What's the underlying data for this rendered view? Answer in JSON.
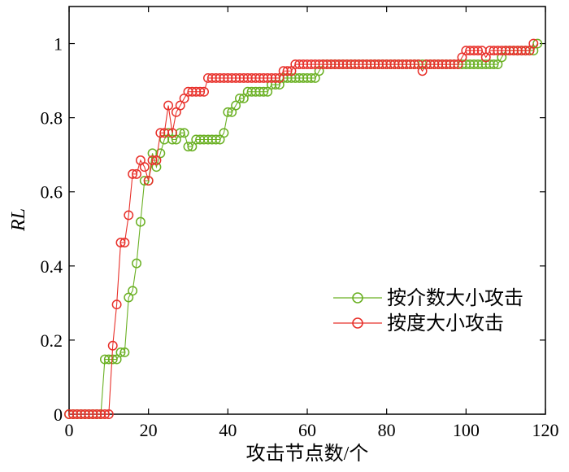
{
  "chart_data": {
    "type": "line",
    "xlabel": "攻击节点数/个",
    "ylabel": "RL",
    "xlim": [
      0,
      120
    ],
    "ylim": [
      0,
      1.1
    ],
    "x_ticks": [
      0,
      20,
      40,
      60,
      80,
      100,
      120
    ],
    "y_ticks": [
      0,
      0.2,
      0.4,
      0.6,
      0.8,
      1
    ],
    "x_tick_labels": [
      "0",
      "20",
      "40",
      "60",
      "80",
      "100",
      "120"
    ],
    "y_tick_labels": [
      "0",
      "0.2",
      "0.4",
      "0.6",
      "0.8",
      "1"
    ],
    "grid": false,
    "legend_position": "right",
    "series": [
      {
        "name": "按介数大小攻击",
        "color": "#6ab023",
        "marker": "circle-open",
        "points": [
          [
            0,
            0
          ],
          [
            1,
            0
          ],
          [
            2,
            0
          ],
          [
            3,
            0
          ],
          [
            4,
            0
          ],
          [
            5,
            0
          ],
          [
            6,
            0
          ],
          [
            7,
            0
          ],
          [
            8,
            0
          ],
          [
            9,
            0.148
          ],
          [
            10,
            0.148
          ],
          [
            11,
            0.148
          ],
          [
            12,
            0.148
          ],
          [
            13,
            0.167
          ],
          [
            14,
            0.167
          ],
          [
            15,
            0.315
          ],
          [
            16,
            0.333
          ],
          [
            17,
            0.407
          ],
          [
            18,
            0.519
          ],
          [
            19,
            0.63
          ],
          [
            20,
            0.63
          ],
          [
            21,
            0.704
          ],
          [
            22,
            0.667
          ],
          [
            23,
            0.704
          ],
          [
            24,
            0.741
          ],
          [
            25,
            0.759
          ],
          [
            26,
            0.741
          ],
          [
            27,
            0.741
          ],
          [
            28,
            0.759
          ],
          [
            29,
            0.759
          ],
          [
            30,
            0.722
          ],
          [
            31,
            0.722
          ],
          [
            32,
            0.741
          ],
          [
            33,
            0.741
          ],
          [
            34,
            0.741
          ],
          [
            35,
            0.741
          ],
          [
            36,
            0.741
          ],
          [
            37,
            0.741
          ],
          [
            38,
            0.741
          ],
          [
            39,
            0.759
          ],
          [
            40,
            0.815
          ],
          [
            41,
            0.815
          ],
          [
            42,
            0.833
          ],
          [
            43,
            0.852
          ],
          [
            44,
            0.852
          ],
          [
            45,
            0.87
          ],
          [
            46,
            0.87
          ],
          [
            47,
            0.87
          ],
          [
            48,
            0.87
          ],
          [
            49,
            0.87
          ],
          [
            50,
            0.87
          ],
          [
            51,
            0.889
          ],
          [
            52,
            0.889
          ],
          [
            53,
            0.889
          ],
          [
            54,
            0.907
          ],
          [
            55,
            0.907
          ],
          [
            56,
            0.907
          ],
          [
            57,
            0.907
          ],
          [
            58,
            0.907
          ],
          [
            59,
            0.907
          ],
          [
            60,
            0.907
          ],
          [
            61,
            0.907
          ],
          [
            62,
            0.907
          ],
          [
            63,
            0.926
          ],
          [
            64,
            0.944
          ],
          [
            65,
            0.944
          ],
          [
            66,
            0.944
          ],
          [
            67,
            0.944
          ],
          [
            68,
            0.944
          ],
          [
            69,
            0.944
          ],
          [
            70,
            0.944
          ],
          [
            71,
            0.944
          ],
          [
            72,
            0.944
          ],
          [
            73,
            0.944
          ],
          [
            74,
            0.944
          ],
          [
            75,
            0.944
          ],
          [
            76,
            0.944
          ],
          [
            77,
            0.944
          ],
          [
            78,
            0.944
          ],
          [
            79,
            0.944
          ],
          [
            80,
            0.944
          ],
          [
            81,
            0.944
          ],
          [
            82,
            0.944
          ],
          [
            83,
            0.944
          ],
          [
            84,
            0.944
          ],
          [
            85,
            0.944
          ],
          [
            86,
            0.944
          ],
          [
            87,
            0.944
          ],
          [
            88,
            0.944
          ],
          [
            89,
            0.944
          ],
          [
            90,
            0.944
          ],
          [
            91,
            0.944
          ],
          [
            92,
            0.944
          ],
          [
            93,
            0.944
          ],
          [
            94,
            0.944
          ],
          [
            95,
            0.944
          ],
          [
            96,
            0.944
          ],
          [
            97,
            0.944
          ],
          [
            98,
            0.944
          ],
          [
            99,
            0.944
          ],
          [
            100,
            0.944
          ],
          [
            101,
            0.944
          ],
          [
            102,
            0.944
          ],
          [
            103,
            0.944
          ],
          [
            104,
            0.944
          ],
          [
            105,
            0.944
          ],
          [
            106,
            0.944
          ],
          [
            107,
            0.944
          ],
          [
            108,
            0.944
          ],
          [
            109,
            0.963
          ],
          [
            110,
            0.981
          ],
          [
            111,
            0.981
          ],
          [
            112,
            0.981
          ],
          [
            113,
            0.981
          ],
          [
            114,
            0.981
          ],
          [
            115,
            0.981
          ],
          [
            116,
            0.981
          ],
          [
            117,
            0.981
          ],
          [
            118,
            1.0
          ]
        ]
      },
      {
        "name": "按度大小攻击",
        "color": "#e8302a",
        "marker": "circle-open",
        "points": [
          [
            0,
            0
          ],
          [
            1,
            0
          ],
          [
            2,
            0
          ],
          [
            3,
            0
          ],
          [
            4,
            0
          ],
          [
            5,
            0
          ],
          [
            6,
            0
          ],
          [
            7,
            0
          ],
          [
            8,
            0
          ],
          [
            9,
            0
          ],
          [
            10,
            0
          ],
          [
            11,
            0.185
          ],
          [
            12,
            0.296
          ],
          [
            13,
            0.463
          ],
          [
            14,
            0.463
          ],
          [
            15,
            0.537
          ],
          [
            16,
            0.648
          ],
          [
            17,
            0.648
          ],
          [
            18,
            0.685
          ],
          [
            19,
            0.667
          ],
          [
            20,
            0.63
          ],
          [
            21,
            0.685
          ],
          [
            22,
            0.685
          ],
          [
            23,
            0.759
          ],
          [
            24,
            0.759
          ],
          [
            25,
            0.833
          ],
          [
            26,
            0.759
          ],
          [
            27,
            0.815
          ],
          [
            28,
            0.833
          ],
          [
            29,
            0.852
          ],
          [
            30,
            0.87
          ],
          [
            31,
            0.87
          ],
          [
            32,
            0.87
          ],
          [
            33,
            0.87
          ],
          [
            34,
            0.87
          ],
          [
            35,
            0.907
          ],
          [
            36,
            0.907
          ],
          [
            37,
            0.907
          ],
          [
            38,
            0.907
          ],
          [
            39,
            0.907
          ],
          [
            40,
            0.907
          ],
          [
            41,
            0.907
          ],
          [
            42,
            0.907
          ],
          [
            43,
            0.907
          ],
          [
            44,
            0.907
          ],
          [
            45,
            0.907
          ],
          [
            46,
            0.907
          ],
          [
            47,
            0.907
          ],
          [
            48,
            0.907
          ],
          [
            49,
            0.907
          ],
          [
            50,
            0.907
          ],
          [
            51,
            0.907
          ],
          [
            52,
            0.907
          ],
          [
            53,
            0.907
          ],
          [
            54,
            0.926
          ],
          [
            55,
            0.926
          ],
          [
            56,
            0.926
          ],
          [
            57,
            0.944
          ],
          [
            58,
            0.944
          ],
          [
            59,
            0.944
          ],
          [
            60,
            0.944
          ],
          [
            61,
            0.944
          ],
          [
            62,
            0.944
          ],
          [
            63,
            0.944
          ],
          [
            64,
            0.944
          ],
          [
            65,
            0.944
          ],
          [
            66,
            0.944
          ],
          [
            67,
            0.944
          ],
          [
            68,
            0.944
          ],
          [
            69,
            0.944
          ],
          [
            70,
            0.944
          ],
          [
            71,
            0.944
          ],
          [
            72,
            0.944
          ],
          [
            73,
            0.944
          ],
          [
            74,
            0.944
          ],
          [
            75,
            0.944
          ],
          [
            76,
            0.944
          ],
          [
            77,
            0.944
          ],
          [
            78,
            0.944
          ],
          [
            79,
            0.944
          ],
          [
            80,
            0.944
          ],
          [
            81,
            0.944
          ],
          [
            82,
            0.944
          ],
          [
            83,
            0.944
          ],
          [
            84,
            0.944
          ],
          [
            85,
            0.944
          ],
          [
            86,
            0.944
          ],
          [
            87,
            0.944
          ],
          [
            88,
            0.944
          ],
          [
            89,
            0.926
          ],
          [
            90,
            0.944
          ],
          [
            91,
            0.944
          ],
          [
            92,
            0.944
          ],
          [
            93,
            0.944
          ],
          [
            94,
            0.944
          ],
          [
            95,
            0.944
          ],
          [
            96,
            0.944
          ],
          [
            97,
            0.944
          ],
          [
            98,
            0.944
          ],
          [
            99,
            0.963
          ],
          [
            100,
            0.981
          ],
          [
            101,
            0.981
          ],
          [
            102,
            0.981
          ],
          [
            103,
            0.981
          ],
          [
            104,
            0.981
          ],
          [
            105,
            0.963
          ],
          [
            106,
            0.981
          ],
          [
            107,
            0.981
          ],
          [
            108,
            0.981
          ],
          [
            109,
            0.981
          ],
          [
            110,
            0.981
          ],
          [
            111,
            0.981
          ],
          [
            112,
            0.981
          ],
          [
            113,
            0.981
          ],
          [
            114,
            0.981
          ],
          [
            115,
            0.981
          ],
          [
            116,
            0.981
          ],
          [
            117,
            1.0
          ]
        ]
      }
    ]
  }
}
